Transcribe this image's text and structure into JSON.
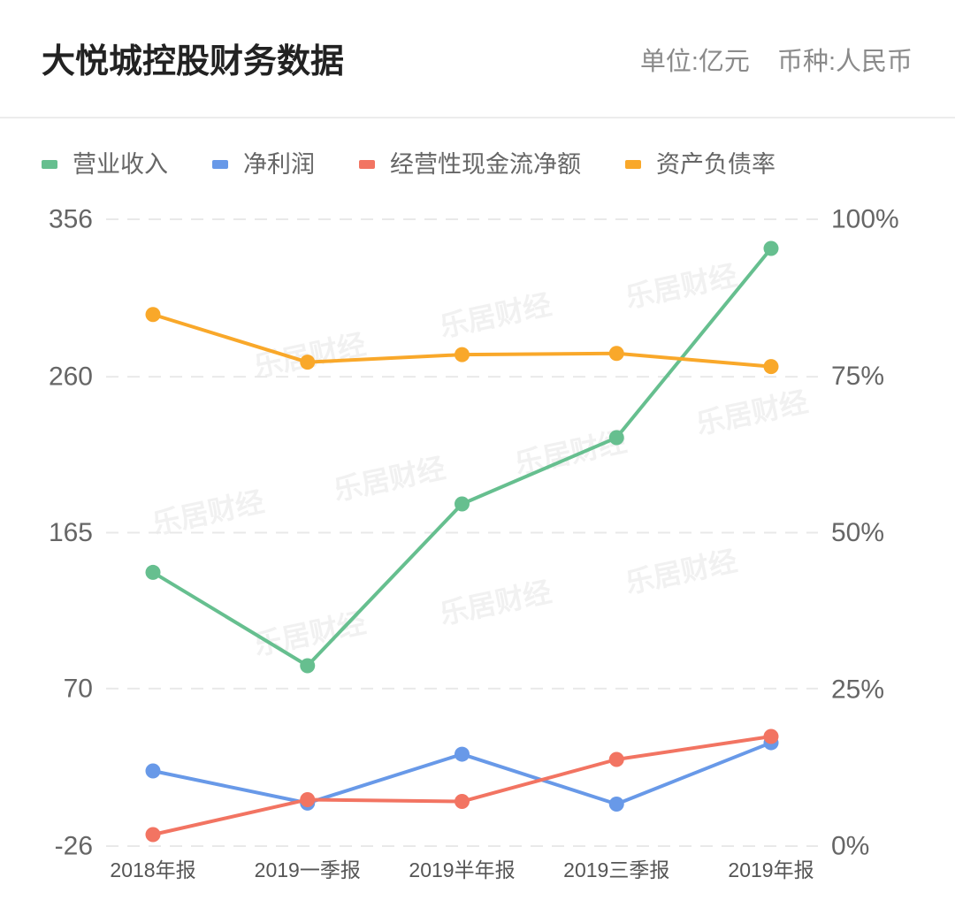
{
  "watermark": "乐居财经",
  "chart_data": {
    "type": "line",
    "title": "大悦城控股财务数据",
    "unit_label": "单位:亿元",
    "currency_label": "币种:人民币",
    "categories": [
      "2018年报",
      "2019一季报",
      "2019半年报",
      "2019三季报",
      "2019年报"
    ],
    "y_left": {
      "ticks": [
        "356",
        "260",
        "165",
        "70",
        "-26"
      ],
      "range": [
        -26,
        356
      ]
    },
    "y_right": {
      "ticks": [
        "100%",
        "75%",
        "50%",
        "25%",
        "0%"
      ],
      "range": [
        0,
        100
      ]
    },
    "grid": true,
    "legend_position": "top-left",
    "series": [
      {
        "name": "营业收入",
        "y_axis": "left",
        "color": "#66bf8f",
        "values": [
          140.8,
          83.9,
          182.5,
          222.9,
          338.2
        ]
      },
      {
        "name": "净利润",
        "y_axis": "left",
        "color": "#6899e8",
        "values": [
          19.8,
          0.2,
          30.0,
          -0.4,
          37.0
        ]
      },
      {
        "name": "经营性现金流净额",
        "y_axis": "left",
        "color": "#f27462",
        "values": [
          -19.0,
          2.3,
          1.2,
          26.8,
          40.8
        ]
      },
      {
        "name": "资产负债率",
        "y_axis": "right",
        "color": "#f9a82a",
        "values": [
          84.8,
          77.2,
          78.4,
          78.6,
          76.5
        ]
      }
    ]
  }
}
